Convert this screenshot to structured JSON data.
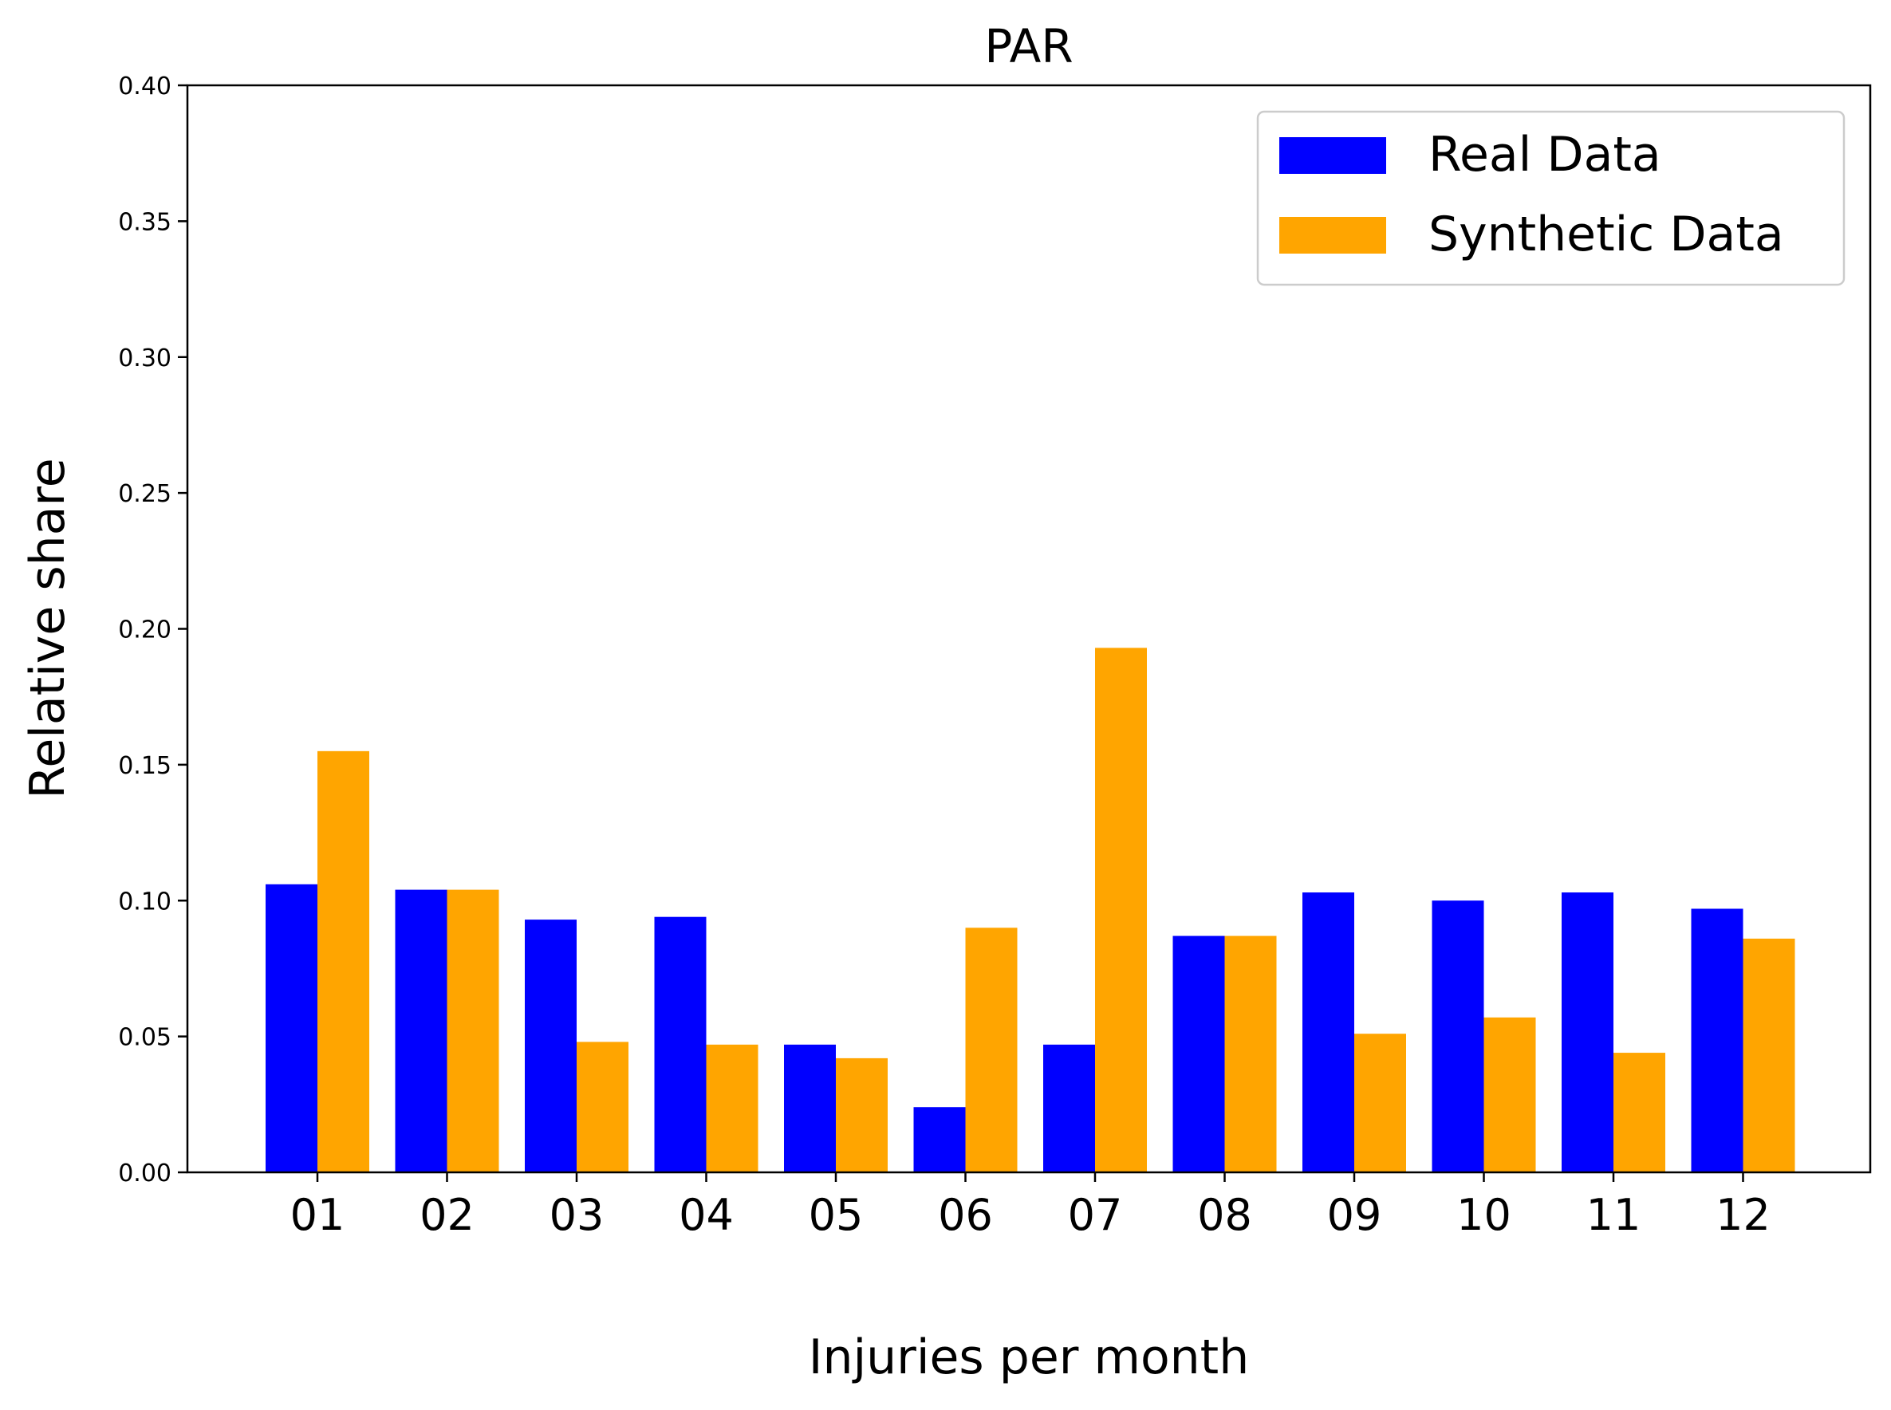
{
  "chart_data": {
    "type": "bar",
    "title": "PAR",
    "xlabel": "Injuries per month",
    "ylabel": "Relative share",
    "categories": [
      "01",
      "02",
      "03",
      "04",
      "05",
      "06",
      "07",
      "08",
      "09",
      "10",
      "11",
      "12"
    ],
    "series": [
      {
        "name": "Real Data",
        "color": "#0000ff",
        "values": [
          0.106,
          0.104,
          0.093,
          0.094,
          0.047,
          0.024,
          0.047,
          0.087,
          0.103,
          0.1,
          0.103,
          0.097
        ]
      },
      {
        "name": "Synthetic Data",
        "color": "#ffa500",
        "values": [
          0.155,
          0.104,
          0.048,
          0.047,
          0.042,
          0.09,
          0.193,
          0.087,
          0.051,
          0.057,
          0.044,
          0.086
        ]
      }
    ],
    "ylim": [
      0,
      0.4
    ],
    "yticks": [
      "0.00",
      "0.05",
      "0.10",
      "0.15",
      "0.20",
      "0.25",
      "0.30",
      "0.35",
      "0.40"
    ],
    "grid": false,
    "legend_position": "top-right"
  }
}
